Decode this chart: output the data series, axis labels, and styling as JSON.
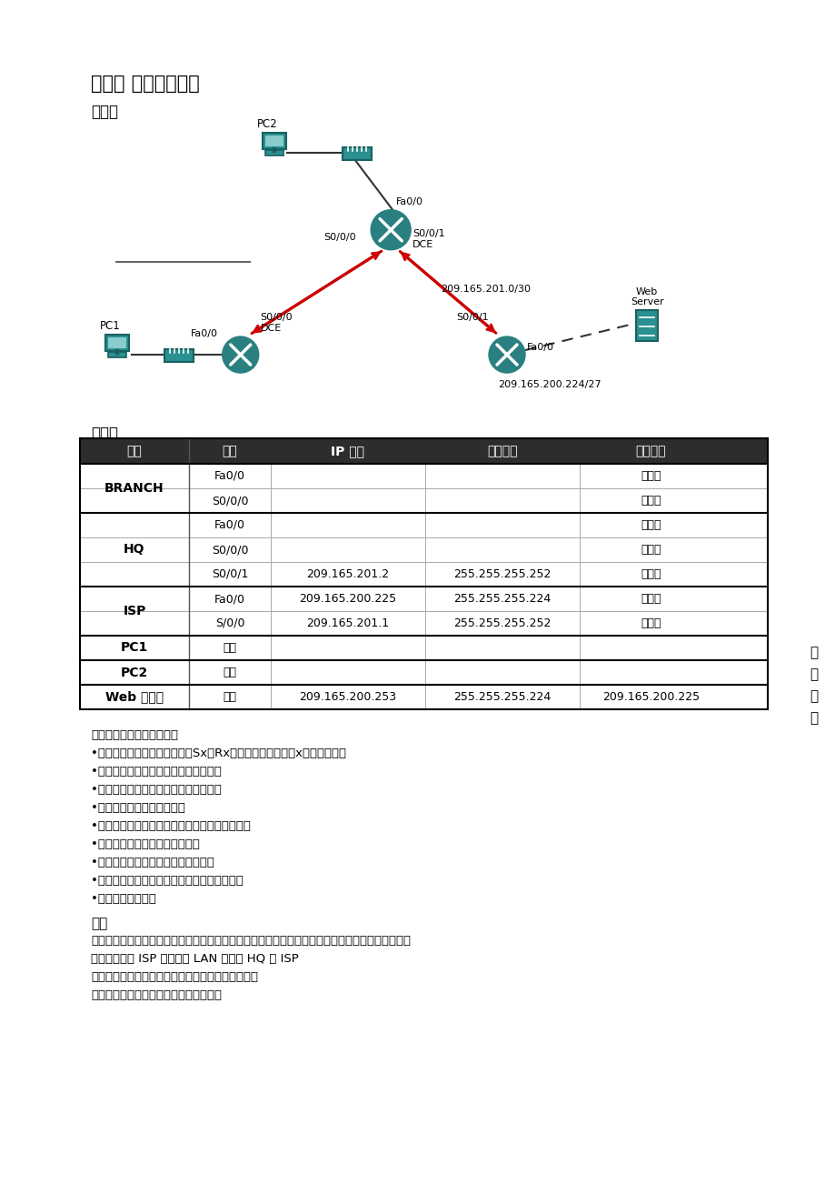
{
  "title": "实验二 静态路由配置",
  "subtitle_topology": "拓扑图",
  "subtitle_address": "地址表",
  "background_color": "#ffffff",
  "table_header_bg": "#2d2d2d",
  "table_headers": [
    "设备",
    "接口",
    "IP 地址",
    "子网掩码",
    "默认网关"
  ],
  "table_col_widths": [
    120,
    90,
    170,
    170,
    157
  ],
  "table_rows": [
    [
      "BRANCH",
      "Fa0/0",
      "",
      "",
      "不适用"
    ],
    [
      "BRANCH",
      "S0/0/0",
      "",
      "",
      "不适用"
    ],
    [
      "HQ",
      "Fa0/0",
      "",
      "",
      "不适用"
    ],
    [
      "HQ",
      "S0/0/0",
      "",
      "",
      "不适用"
    ],
    [
      "HQ",
      "S0/0/1",
      "209.165.201.2",
      "255.255.255.252",
      "不适用"
    ],
    [
      "ISP",
      "Fa0/0",
      "209.165.200.225",
      "255.255.255.224",
      "不适用"
    ],
    [
      "ISP",
      "S/0/0",
      "209.165.201.1",
      "255.255.255.252",
      "不适用"
    ],
    [
      "PC1",
      "网卡",
      "",
      "",
      ""
    ],
    [
      "PC2",
      "网卡",
      "",
      "",
      ""
    ],
    [
      "Web 服务器",
      "网卡",
      "209.165.200.253",
      "255.255.255.224",
      "209.165.200.225"
    ]
  ],
  "merged_rows": {
    "BRANCH": [
      0,
      1
    ],
    "HQ": [
      2,
      3,
      4
    ],
    "ISP": [
      5,
      6
    ]
  },
  "body_text": [
    "完成本实验后，您将能够：",
    "•请将交换机和路由器名称改成Sx（Rx）后面是姓名首拼，x为设备编号。",
    "•根据指定的要求对地址空间划分子网。",
    "•为接口分配适当的地址，并进行记录。",
    "•根据拓扑图进行网络布线。",
    "•清除启动配置并将路由器重新加载为默认状态。",
    "•在路由器上执行基本配置任务。",
    "•配置并激活串行接口和以太网接口。",
    "•确定适当的静态路由、总结路由和默认路由。",
    "•测试并校验配置。"
  ],
  "scene_title": "场景",
  "scene_lines": [
    "在本次实验中，您将得到一个网络地址，您必须对其进行子网划分以便完成如拓扑结构图所示的网络",
    "编址。连接到 ISP 路由器的 LAN 编址和 HQ 与 ISP",
    "路由器之间的链路已经完成。但还需要配置静态路由",
    "以便非直连网络中的主机能够彼此通信。"
  ],
  "side_text": [
    "学",
    "习",
    "目",
    "标"
  ],
  "router_color": "#2a8080",
  "line_color_red": "#cc0000",
  "line_color_black": "#333333"
}
